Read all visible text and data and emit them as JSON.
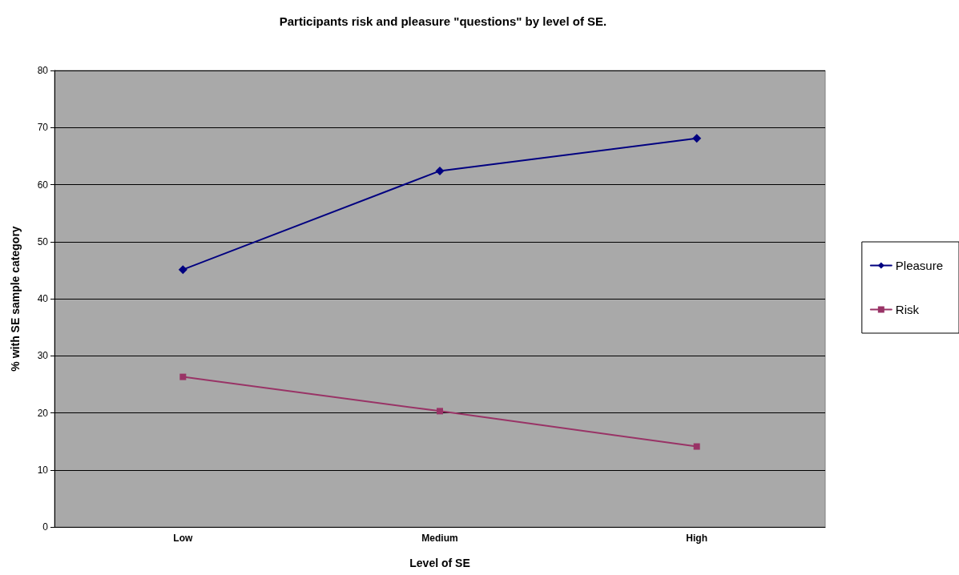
{
  "chart_data": {
    "type": "line",
    "title": "Participants risk and pleasure \"questions\" by level of SE.",
    "xlabel": "Level of SE",
    "ylabel": "% with SE sample category",
    "categories": [
      "Low",
      "Medium",
      "High"
    ],
    "series": [
      {
        "name": "Pleasure",
        "color": "#000080",
        "marker": "diamond",
        "values": [
          45.1,
          62.4,
          68.1
        ]
      },
      {
        "name": "Risk",
        "color": "#993366",
        "marker": "square",
        "values": [
          26.3,
          20.3,
          14.1
        ]
      }
    ],
    "ylim": [
      0,
      80
    ],
    "yticks": [
      0,
      10,
      20,
      30,
      40,
      50,
      60,
      70,
      80
    ],
    "grid": "y",
    "legend": "right",
    "line_style": "solid"
  }
}
